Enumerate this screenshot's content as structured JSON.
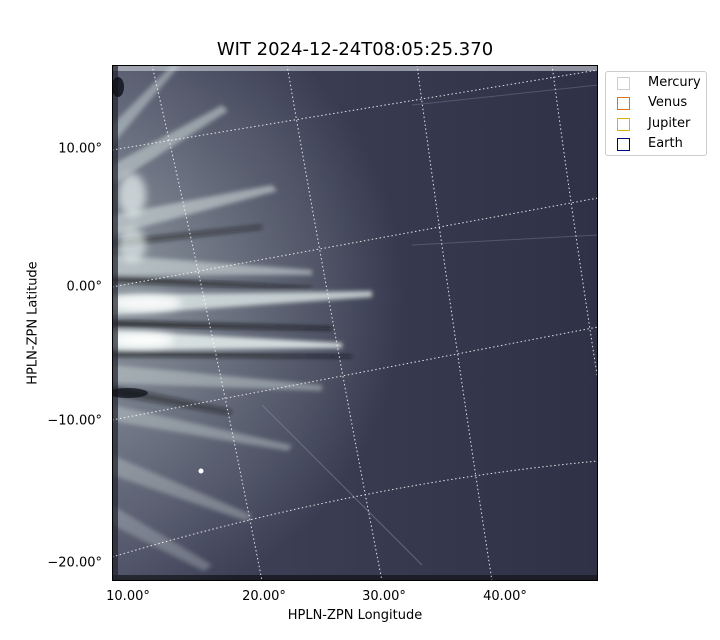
{
  "figure": {
    "title": "WIT 2024-12-24T08:05:25.370",
    "xlabel": "HPLN-ZPN Longitude",
    "ylabel": "HPLN-ZPN Latitude"
  },
  "axes": {
    "x_ticks": [
      "10.00°",
      "20.00°",
      "30.00°",
      "40.00°"
    ],
    "y_ticks": [
      "10.00°",
      "0.00°",
      "−10.00°",
      "−20.00°"
    ],
    "colormap": "grayscale-blue heliospheric imager"
  },
  "legend": {
    "items": [
      {
        "label": "Mercury",
        "color": "#cccccc"
      },
      {
        "label": "Venus",
        "color": "#e07020"
      },
      {
        "label": "Jupiter",
        "color": "#e0b000"
      },
      {
        "label": "Earth",
        "color": "#000080"
      }
    ]
  },
  "colors": {
    "background": "#33354a",
    "streamer": "#e6f0ee",
    "grid": "#ffffff"
  }
}
